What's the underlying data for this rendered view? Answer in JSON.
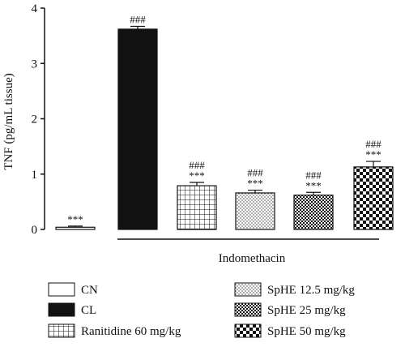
{
  "chart_data": {
    "type": "bar",
    "ylabel": "TNF (pg/mL tissue)",
    "ylim": [
      0,
      4
    ],
    "yticks": [
      0,
      1,
      2,
      3,
      4
    ],
    "categories": [
      "CN",
      "CL",
      "Ranitidine 60 mg/kg",
      "SpHE 12.5 mg/kg",
      "SpHE 25 mg/kg",
      "SpHE 50 mg/kg"
    ],
    "values": [
      0.04,
      3.62,
      0.79,
      0.66,
      0.62,
      1.13
    ],
    "errors": [
      0.02,
      0.05,
      0.06,
      0.05,
      0.05,
      0.1
    ],
    "significance": [
      [
        "***"
      ],
      [
        "###"
      ],
      [
        "###",
        "***"
      ],
      [
        "###",
        "***"
      ],
      [
        "###",
        "***"
      ],
      [
        "###",
        "***"
      ]
    ],
    "patterns": [
      "blank",
      "solid",
      "grid",
      "dots",
      "checker-fine",
      "checker-bold"
    ],
    "group_label": "Indomethacin",
    "legend": {
      "position": "bottom",
      "items": [
        {
          "label": "CN",
          "pattern": "blank"
        },
        {
          "label": "CL",
          "pattern": "solid"
        },
        {
          "label": "Ranitidine 60 mg/kg",
          "pattern": "grid"
        },
        {
          "label": "SpHE 12.5 mg/kg",
          "pattern": "dots"
        },
        {
          "label": "SpHE 25 mg/kg",
          "pattern": "checker-fine"
        },
        {
          "label": "SpHE 50 mg/kg",
          "pattern": "checker-bold"
        }
      ]
    },
    "grid": false,
    "colors": {
      "ink": "#111111",
      "background": "#ffffff"
    }
  }
}
